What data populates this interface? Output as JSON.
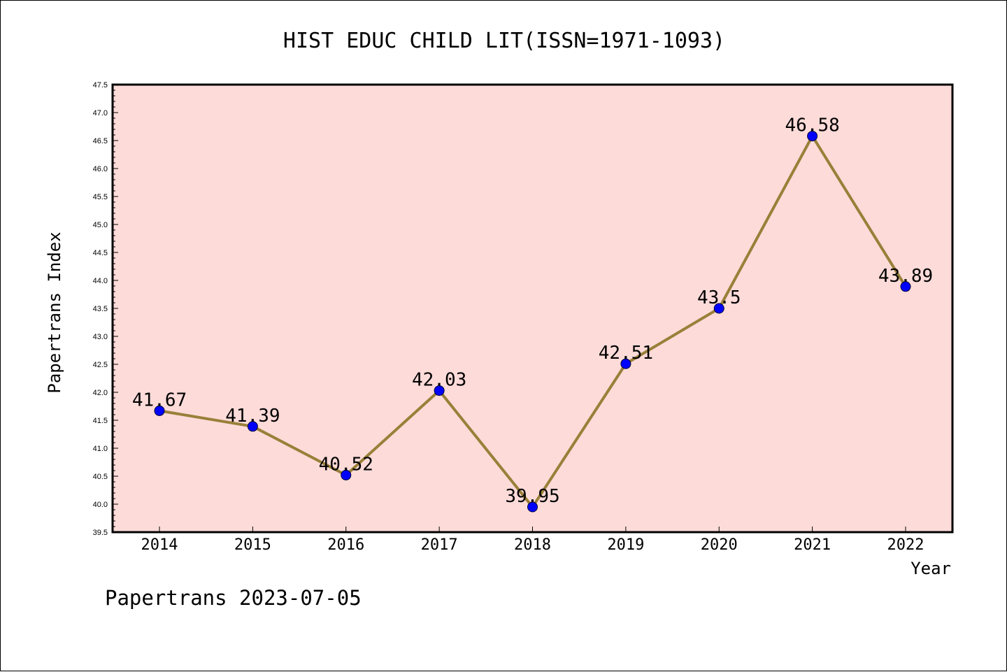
{
  "chart_data": {
    "type": "line",
    "title": "HIST EDUC CHILD LIT(ISSN=1971-1093)",
    "xlabel": "Year",
    "ylabel": "Papertrans Index",
    "categories": [
      "2014",
      "2015",
      "2016",
      "2017",
      "2018",
      "2019",
      "2020",
      "2021",
      "2022"
    ],
    "series": [
      {
        "values": [
          41.67,
          41.39,
          40.52,
          42.03,
          39.95,
          42.51,
          43.5,
          46.58,
          43.89
        ],
        "data_labels": [
          "41.67",
          "41.39",
          "40.52",
          "42.03",
          "39.95",
          "42.51",
          "43.5",
          "46.58",
          "43.89"
        ]
      }
    ],
    "ylim": [
      39.5,
      47.5
    ],
    "y_ticks": [
      "39.5",
      "40.0",
      "40.5",
      "41.0",
      "41.5",
      "42.0",
      "42.5",
      "43.0",
      "43.5",
      "44.0",
      "44.5",
      "45.0",
      "45.5",
      "46.0",
      "46.5",
      "47.0",
      "47.5"
    ],
    "grid": false,
    "legend": "none",
    "colors": {
      "plot_background": "#fddbd9",
      "line": "#998039",
      "marker": "#0000ff",
      "axis": "#000000"
    }
  },
  "footer": "Papertrans 2023-07-05"
}
